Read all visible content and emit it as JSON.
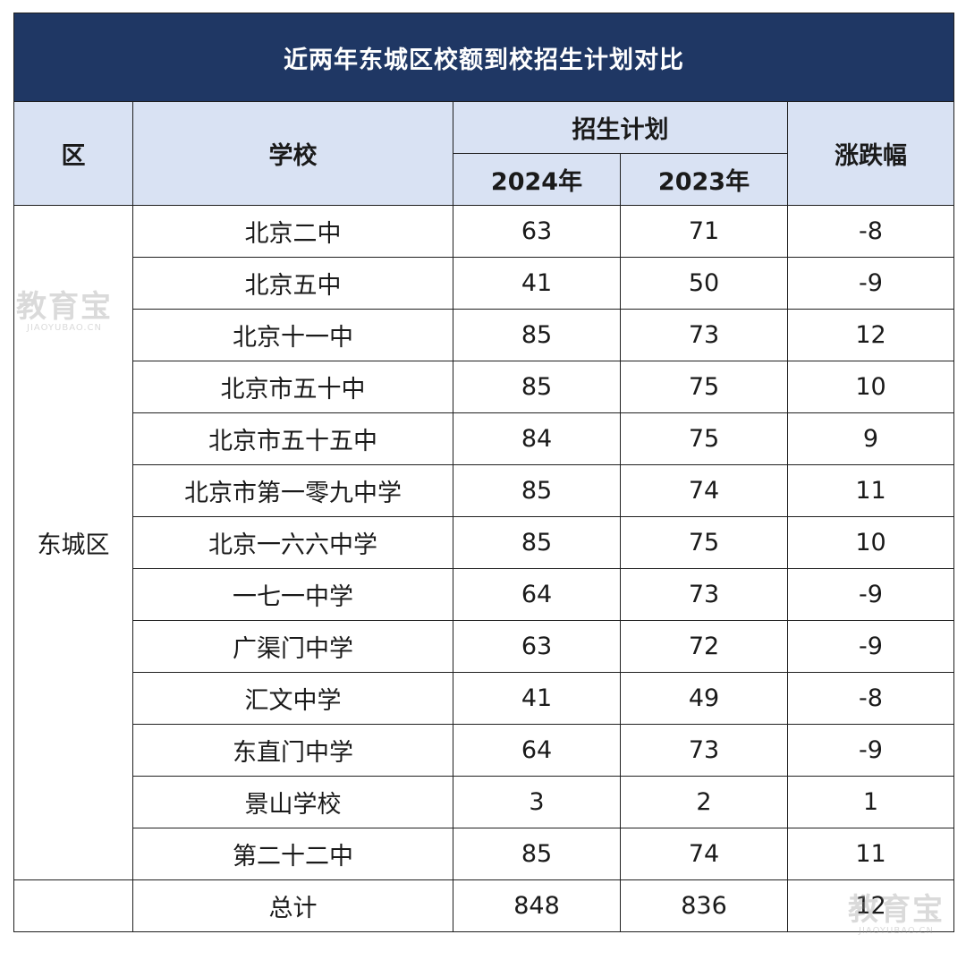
{
  "title": "近两年东城区校额到校招生计划对比",
  "headers": {
    "district": "区",
    "school": "学校",
    "plan": "招生计划",
    "year_a": "2024年",
    "year_b": "2023年",
    "change": "涨跌幅"
  },
  "district_name": "东城区",
  "rows": [
    {
      "school": "北京二中",
      "y2024": "63",
      "y2023": "71",
      "change": "-8"
    },
    {
      "school": "北京五中",
      "y2024": "41",
      "y2023": "50",
      "change": "-9"
    },
    {
      "school": "北京十一中",
      "y2024": "85",
      "y2023": "73",
      "change": "12"
    },
    {
      "school": "北京市五十中",
      "y2024": "85",
      "y2023": "75",
      "change": "10"
    },
    {
      "school": "北京市五十五中",
      "y2024": "84",
      "y2023": "75",
      "change": "9"
    },
    {
      "school": "北京市第一零九中学",
      "y2024": "85",
      "y2023": "74",
      "change": "11"
    },
    {
      "school": "北京一六六中学",
      "y2024": "85",
      "y2023": "75",
      "change": "10"
    },
    {
      "school": "一七一中学",
      "y2024": "64",
      "y2023": "73",
      "change": "-9"
    },
    {
      "school": "广渠门中学",
      "y2024": "63",
      "y2023": "72",
      "change": "-9"
    },
    {
      "school": "汇文中学",
      "y2024": "41",
      "y2023": "49",
      "change": "-8"
    },
    {
      "school": "东直门中学",
      "y2024": "64",
      "y2023": "73",
      "change": "-9"
    },
    {
      "school": "景山学校",
      "y2024": "3",
      "y2023": "2",
      "change": "1"
    },
    {
      "school": "第二十二中",
      "y2024": "85",
      "y2023": "74",
      "change": "11"
    }
  ],
  "total": {
    "label": "总计",
    "y2024": "848",
    "y2023": "836",
    "change": "12"
  },
  "watermark": {
    "cn": "教育宝",
    "en": "JIAOYUBAO.CN"
  },
  "colors": {
    "title_bg": "#1f3764",
    "header_bg": "#d9e2f3",
    "title_text": "#ffffff"
  }
}
